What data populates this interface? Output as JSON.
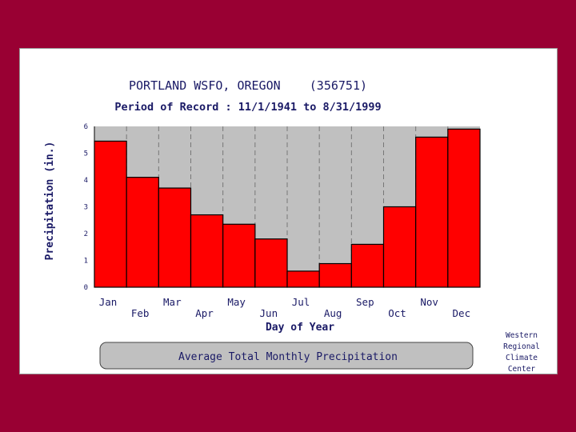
{
  "chart_data": {
    "type": "bar",
    "title": "PORTLAND WSFO, OREGON    (356751)",
    "subtitle": "Period of Record : 11/1/1941 to 8/31/1999",
    "xlabel": "Day of Year",
    "ylabel": "Precipitation (in.)",
    "caption": "Average Total Monthly Precipitation",
    "credit": [
      "Western",
      "Regional",
      "Climate",
      "Center"
    ],
    "categories": [
      "Jan",
      "Feb",
      "Mar",
      "Apr",
      "May",
      "Jun",
      "Jul",
      "Aug",
      "Sep",
      "Oct",
      "Nov",
      "Dec"
    ],
    "values": [
      5.45,
      4.1,
      3.7,
      2.7,
      2.35,
      1.8,
      0.6,
      0.88,
      1.6,
      3.0,
      5.6,
      5.9
    ],
    "ylim": [
      0,
      6
    ],
    "yticks": [
      "0",
      "1",
      "2",
      "3",
      "4",
      "5",
      "6"
    ],
    "grid": true,
    "colors": {
      "bar": "#ff0000",
      "plot_background": "#c0c0c0",
      "frame": "#990033",
      "text": "#1a1a66"
    }
  }
}
